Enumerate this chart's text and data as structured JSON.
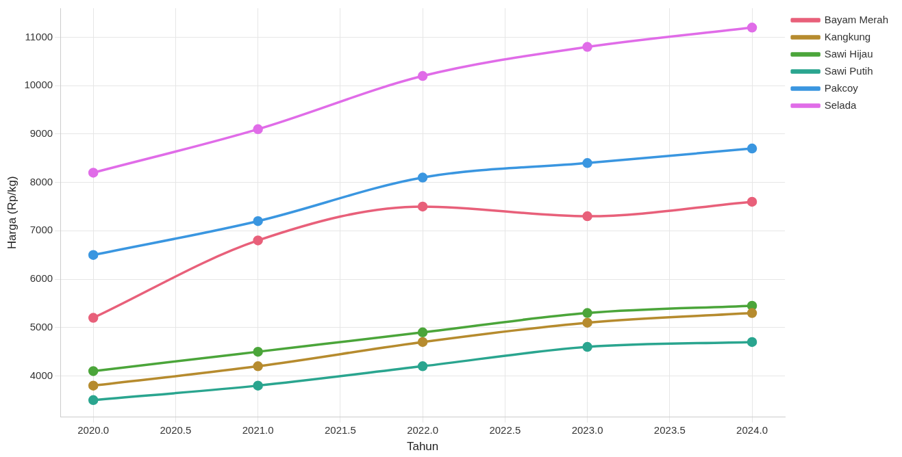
{
  "chart_data": {
    "type": "line",
    "xlabel": "Tahun",
    "ylabel": "Harga (Rp/kg)",
    "x": [
      2020,
      2021,
      2022,
      2023,
      2024
    ],
    "series": [
      {
        "name": "Bayam Merah",
        "color": "#e8607a",
        "values": [
          5200,
          6800,
          7500,
          7300,
          7600
        ]
      },
      {
        "name": "Kangkung",
        "color": "#b68b2e",
        "values": [
          3800,
          4200,
          4700,
          5100,
          5300
        ]
      },
      {
        "name": "Sawi Hijau",
        "color": "#4ba53a",
        "values": [
          4100,
          4500,
          4900,
          5300,
          5450
        ]
      },
      {
        "name": "Sawi Putih",
        "color": "#2aa58f",
        "values": [
          3500,
          3800,
          4200,
          4600,
          4700
        ]
      },
      {
        "name": "Pakcoy",
        "color": "#3a96e0",
        "values": [
          6500,
          7200,
          8100,
          8400,
          8700
        ]
      },
      {
        "name": "Selada",
        "color": "#e06ce8",
        "values": [
          8200,
          9100,
          10200,
          10800,
          11200
        ]
      }
    ],
    "xlim": [
      2019.8,
      2024.2
    ],
    "xticks": [
      {
        "value": 2020,
        "label": "2020.0"
      },
      {
        "value": 2020.5,
        "label": "2020.5"
      },
      {
        "value": 2021,
        "label": "2021.0"
      },
      {
        "value": 2021.5,
        "label": "2021.5"
      },
      {
        "value": 2022,
        "label": "2022.0"
      },
      {
        "value": 2022.5,
        "label": "2022.5"
      },
      {
        "value": 2023,
        "label": "2023.0"
      },
      {
        "value": 2023.5,
        "label": "2023.5"
      },
      {
        "value": 2024,
        "label": "2024.0"
      }
    ],
    "ylim": [
      3150,
      11600
    ],
    "yticks": [
      4000,
      5000,
      6000,
      7000,
      8000,
      9000,
      10000,
      11000
    ],
    "grid": true,
    "legend": "top right",
    "marker": "circle",
    "line_style": "solid"
  }
}
